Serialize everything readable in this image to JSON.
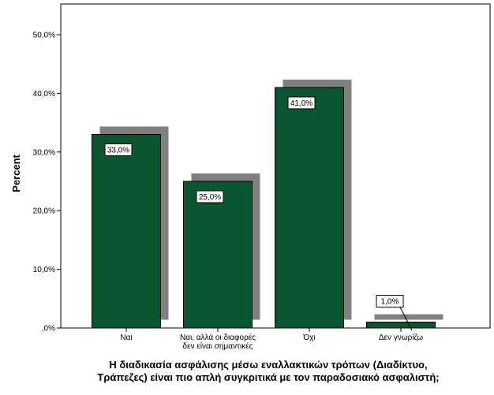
{
  "chart_data": {
    "type": "bar",
    "categories": [
      [
        "Ναι"
      ],
      [
        "Ναι, αλλά οι διαφορές",
        "δεν είναι σημαντικές"
      ],
      [
        "Όχι"
      ],
      [
        "Δεν γνωρίζω"
      ]
    ],
    "values": [
      33.0,
      25.0,
      41.0,
      1.0
    ],
    "data_labels": [
      "33,0%",
      "25,0%",
      "41,0%",
      "1,0%"
    ],
    "ylabel": "Percent",
    "xlabel_lines": [
      "Η διαδικασία ασφάλισης μέσω εναλλακτικών τρόπων (Διαδίκτυο,",
      "Τράπεζες) είναι πιο απλή συγκριτικά με τον παραδοσιακό ασφαλιστή;"
    ],
    "ylim": [
      0,
      55
    ],
    "yticks": [
      0,
      10,
      20,
      30,
      40,
      50
    ],
    "ytick_labels": [
      ",0%",
      "10,0%",
      "20,0%",
      "30,0%",
      "40,0%",
      "50,0%"
    ],
    "bar_color": "#0b5530",
    "shadow_color": "#808080",
    "grid": false
  }
}
